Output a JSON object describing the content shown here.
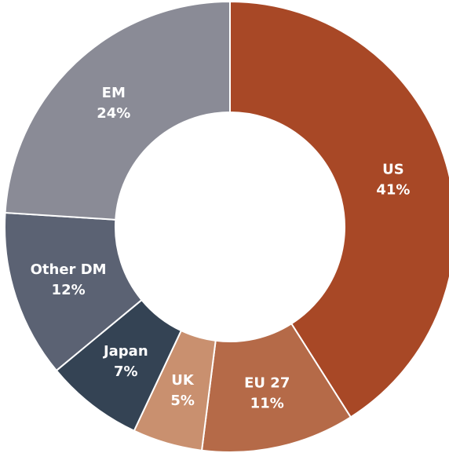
{
  "chart_data": {
    "type": "donut",
    "categories": [
      "US",
      "EU 27",
      "UK",
      "Japan",
      "Other DM",
      "EM"
    ],
    "values": [
      41,
      11,
      5,
      7,
      12,
      24
    ],
    "value_labels": [
      "41%",
      "11%",
      "5%",
      "7%",
      "12%",
      "24%"
    ],
    "colors": [
      "#a84826",
      "#b56a48",
      "#c9906f",
      "#344354",
      "#5b6273",
      "#8a8b96"
    ]
  }
}
